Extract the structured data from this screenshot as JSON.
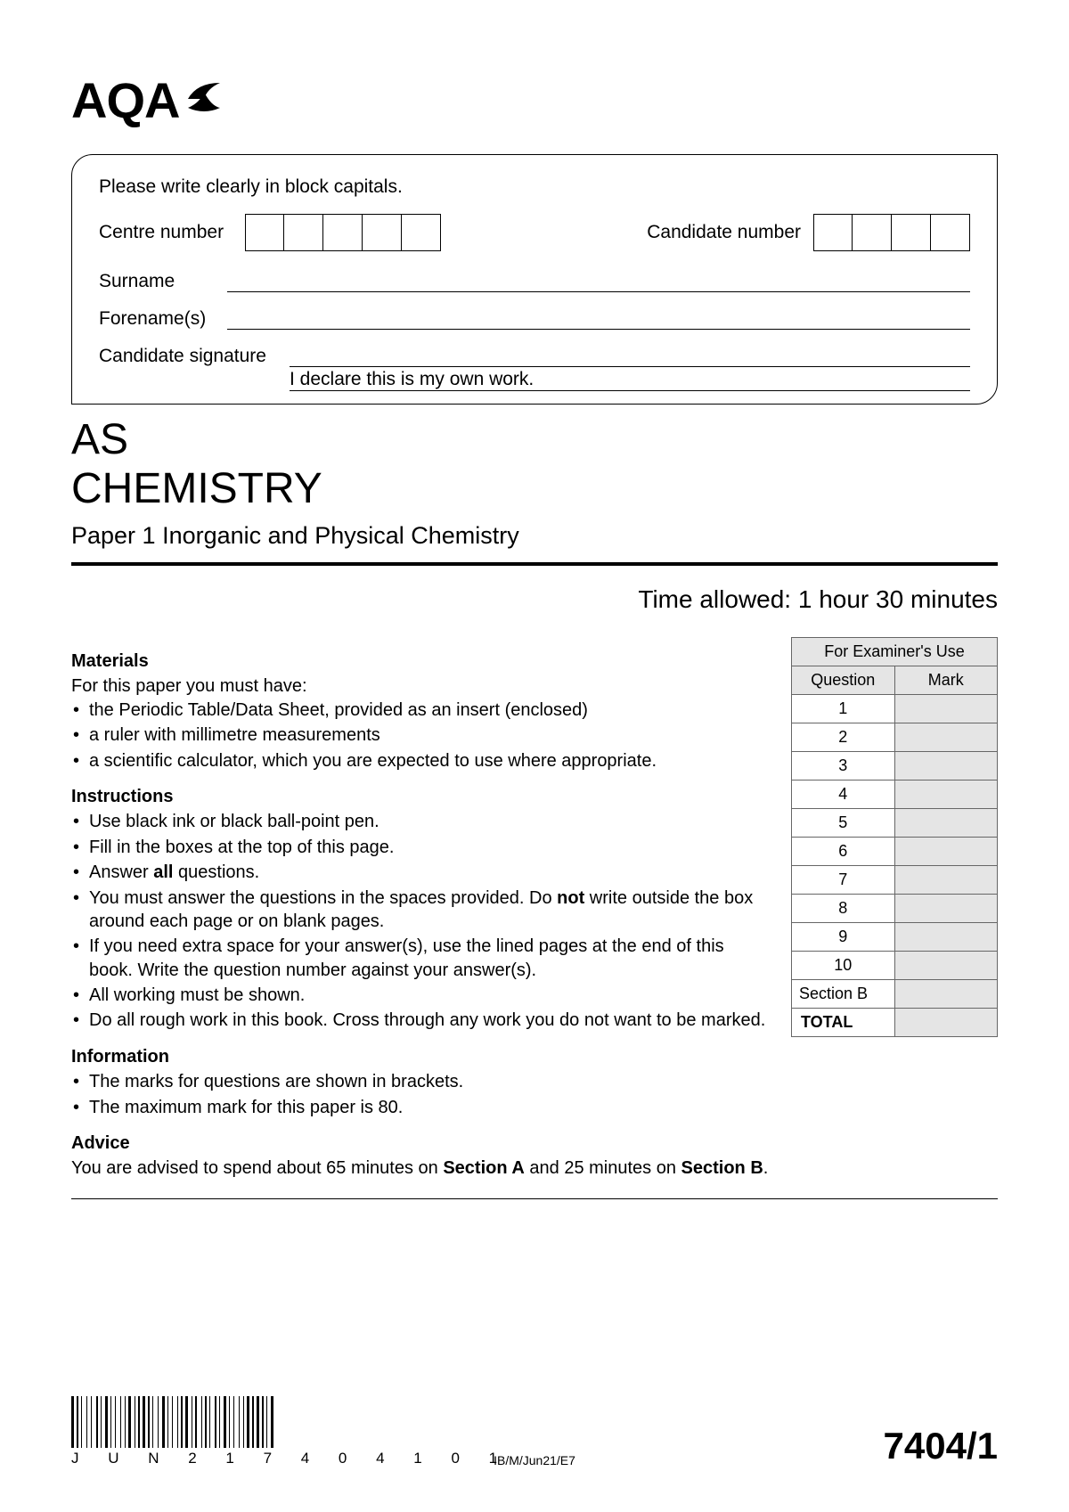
{
  "logo_text": "AQA",
  "info_box": {
    "instruction": "Please write clearly in block capitals.",
    "centre_label": "Centre number",
    "centre_boxes": 5,
    "candidate_label": "Candidate number",
    "candidate_boxes": 4,
    "surname_label": "Surname",
    "forenames_label": "Forename(s)",
    "signature_label": "Candidate signature",
    "declaration": "I declare this is my own work."
  },
  "level": "AS",
  "subject": "CHEMISTRY",
  "paper": "Paper 1  Inorganic and Physical Chemistry",
  "time_allowed": "Time allowed: 1 hour 30 minutes",
  "materials": {
    "heading": "Materials",
    "intro": "For this paper you must have:",
    "items": [
      "the Periodic Table/Data Sheet, provided as an insert (enclosed)",
      "a ruler with millimetre measurements",
      "a scientific calculator, which you are expected to use where appropriate."
    ]
  },
  "instructions": {
    "heading": "Instructions",
    "items_html": [
      "Use black ink or black ball-point pen.",
      "Fill in the boxes at the top of this page.",
      "Answer <b>all</b> questions.",
      "You must answer the questions in the spaces provided.  Do <b>not</b> write outside the box around each page or on blank pages.",
      "If you need extra space for your answer(s), use the lined pages at the end of this book.  Write the question number against your answer(s).",
      "All working must be shown.",
      "Do all rough work in this book.  Cross through any work you do not want to be marked."
    ]
  },
  "information": {
    "heading": "Information",
    "items": [
      "The marks for questions are shown in brackets.",
      "The maximum mark for this paper is 80."
    ]
  },
  "advice": {
    "heading": "Advice",
    "text_html": "You are advised to spend about 65 minutes on <b>Section A</b> and 25 minutes on <b>Section B</b>."
  },
  "examiner_table": {
    "title": "For Examiner's Use",
    "col1": "Question",
    "col2": "Mark",
    "rows": [
      "1",
      "2",
      "3",
      "4",
      "5",
      "6",
      "7",
      "8",
      "9",
      "10",
      "Section B"
    ],
    "total_label": "TOTAL"
  },
  "barcode_text": "JUN217404101",
  "barcode_widths": [
    3,
    1,
    2,
    1,
    1,
    3,
    1,
    2,
    1,
    3,
    2,
    1,
    1,
    2,
    3,
    1,
    1,
    2,
    1,
    3,
    1,
    2,
    1,
    1,
    3,
    2,
    1,
    1,
    2,
    1,
    3,
    1,
    2,
    1,
    1,
    3,
    1,
    2,
    3,
    1,
    1,
    2,
    1,
    3,
    1,
    1,
    2,
    1,
    3,
    2,
    1,
    1,
    2,
    3,
    1,
    1,
    2,
    1,
    1,
    3,
    2,
    1,
    1,
    2,
    3,
    1,
    1,
    2,
    1,
    3,
    1,
    2,
    1,
    1,
    3,
    1,
    2,
    1,
    3,
    1,
    2,
    1,
    1,
    2,
    3
  ],
  "footer_ref": "IB/M/Jun21/E7",
  "paper_code": "7404/1",
  "colors": {
    "grey": "#e5e5e5",
    "border": "#666666"
  }
}
